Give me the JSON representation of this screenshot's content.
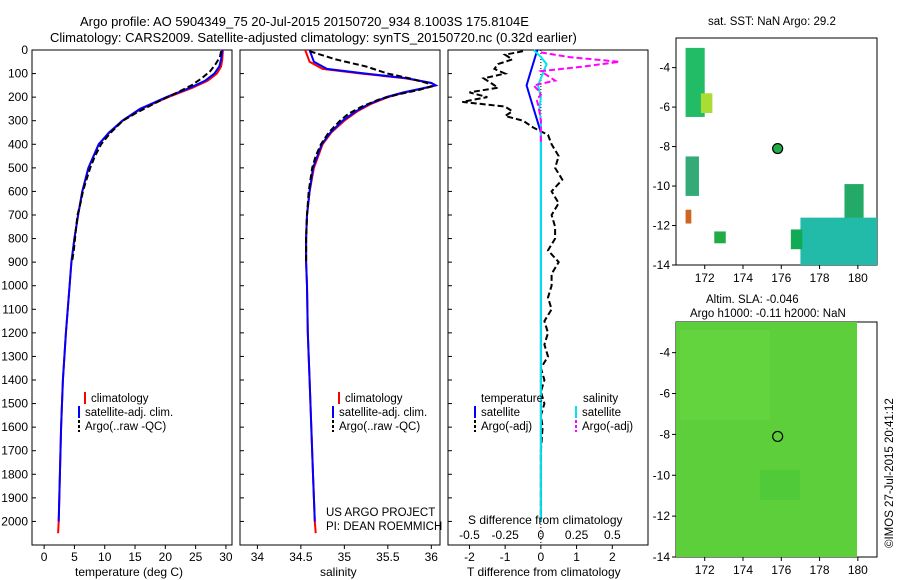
{
  "header": {
    "line1": "Argo profile: AO 5904349_75 20-Jul-2015 20150720_934 8.1003S 175.8104E",
    "line2": "Climatology: CARS2009. Satellite-adjusted climatology: synTS_20150720.nc (0.32d earlier)"
  },
  "colors": {
    "climatology": "#ff0000",
    "satellite": "#0000ff",
    "argo": "#000000",
    "sal_satellite": "#00e5ee",
    "sal_argo": "#ff00ff"
  },
  "chart_data": [
    {
      "type": "line",
      "id": "temperature",
      "xlabel": "temperature (deg C)",
      "ylabel": "",
      "xlim": [
        -2,
        31
      ],
      "ylim": [
        2100,
        0
      ],
      "xticks": [
        0,
        5,
        10,
        15,
        20,
        25,
        30
      ],
      "yticks": [
        0,
        100,
        200,
        300,
        400,
        500,
        600,
        700,
        800,
        900,
        1000,
        1100,
        1200,
        1300,
        1400,
        1500,
        1600,
        1700,
        1800,
        1900,
        2000
      ],
      "legend": [
        "climatology",
        "satellite-adj. clim.",
        "Argo(..raw -QC)"
      ],
      "series": [
        {
          "name": "climatology",
          "depth": [
            0,
            40,
            70,
            100,
            130,
            160,
            200,
            250,
            300,
            350,
            400,
            500,
            600,
            700,
            800,
            900,
            1000,
            1200,
            1400,
            1600,
            1800,
            2000,
            2050
          ],
          "values": [
            29.5,
            29.4,
            29.2,
            28.5,
            27.0,
            24.5,
            20.5,
            16.0,
            13.0,
            10.8,
            9.0,
            7.3,
            6.3,
            5.6,
            5.0,
            4.5,
            4.2,
            3.6,
            3.1,
            2.8,
            2.6,
            2.4,
            2.3
          ]
        },
        {
          "name": "satellite-adj. clim.",
          "depth": [
            0,
            40,
            70,
            100,
            130,
            160,
            200,
            250,
            300,
            350,
            400,
            500,
            600,
            700,
            800,
            900,
            1000,
            1200,
            1400,
            1600,
            1800,
            2000
          ],
          "values": [
            29.4,
            29.2,
            28.9,
            28.1,
            26.6,
            24.1,
            20.2,
            15.8,
            12.9,
            10.7,
            9.0,
            7.3,
            6.3,
            5.6,
            5.0,
            4.5,
            4.2,
            3.6,
            3.1,
            2.8,
            2.6,
            2.4
          ]
        },
        {
          "name": "Argo(..raw -QC)",
          "depth": [
            5,
            30,
            60,
            90,
            120,
            150,
            180,
            210,
            240,
            270,
            300,
            350,
            400,
            450,
            500,
            550,
            600,
            650,
            700,
            750,
            800,
            850,
            900
          ],
          "values": [
            29.2,
            29.0,
            28.3,
            27.4,
            26.0,
            24.3,
            22.0,
            19.5,
            17.2,
            15.0,
            13.0,
            11.0,
            9.4,
            8.4,
            7.6,
            7.0,
            6.4,
            6.0,
            5.5,
            5.3,
            5.1,
            4.9,
            4.6
          ]
        }
      ]
    },
    {
      "type": "line",
      "id": "salinity",
      "xlabel": "salinity",
      "xlim": [
        33.8,
        36.1
      ],
      "xticks": [
        34,
        34.5,
        35,
        35.5,
        36
      ],
      "legend": [
        "climatology",
        "satellite-adj. clim.",
        "Argo(..raw -QC)"
      ],
      "series": [
        {
          "name": "climatology",
          "depth": [
            0,
            50,
            80,
            100,
            120,
            140,
            150,
            160,
            180,
            200,
            230,
            260,
            300,
            350,
            400,
            500,
            600,
            700,
            800,
            900,
            1000,
            1200,
            1400,
            1600,
            1800,
            2000,
            2050
          ],
          "values": [
            34.55,
            34.6,
            34.75,
            35.2,
            35.7,
            36.0,
            36.05,
            35.95,
            35.7,
            35.5,
            35.3,
            35.15,
            35.0,
            34.85,
            34.75,
            34.65,
            34.6,
            34.57,
            34.56,
            34.56,
            34.57,
            34.58,
            34.6,
            34.62,
            34.64,
            34.66,
            34.67
          ]
        },
        {
          "name": "satellite-adj. clim.",
          "depth": [
            0,
            50,
            80,
            100,
            120,
            140,
            150,
            160,
            180,
            200,
            230,
            260,
            300,
            350,
            400,
            500,
            600,
            700,
            800,
            900,
            1000,
            1200,
            1400,
            1600,
            1800,
            2000
          ],
          "values": [
            34.6,
            34.65,
            34.8,
            35.25,
            35.72,
            36.0,
            36.05,
            35.93,
            35.68,
            35.48,
            35.28,
            35.13,
            34.98,
            34.84,
            34.74,
            34.64,
            34.6,
            34.57,
            34.56,
            34.56,
            34.57,
            34.58,
            34.6,
            34.62,
            34.64,
            34.66
          ]
        },
        {
          "name": "Argo(..raw -QC)",
          "depth": [
            5,
            40,
            70,
            100,
            120,
            140,
            155,
            170,
            190,
            210,
            240,
            270,
            300,
            350,
            400,
            450,
            500,
            600,
            700,
            800,
            900
          ],
          "values": [
            34.6,
            34.9,
            35.25,
            35.5,
            35.75,
            35.95,
            36.0,
            35.85,
            35.6,
            35.4,
            35.2,
            35.05,
            34.95,
            34.82,
            34.73,
            34.67,
            34.63,
            34.59,
            34.57,
            34.56,
            34.56
          ]
        }
      ]
    },
    {
      "type": "line",
      "id": "difference",
      "xlabel": "T difference from climatology",
      "xlabel2": "S difference from climatology",
      "xlim": [
        -2.6,
        3.0
      ],
      "xticks_T": [
        -2,
        -1,
        0,
        1,
        2
      ],
      "xticks_S": [
        -0.5,
        -0.25,
        0,
        0.25,
        0.5
      ],
      "xticks_S_labels": [
        "-0.5",
        "-0.25",
        "0",
        "0.25",
        "0.5"
      ],
      "legend_headers": [
        "temperature",
        "salinity"
      ],
      "legend": [
        "satellite",
        "Argo(-adj)",
        "satellite",
        "Argo(-adj)"
      ],
      "series": [
        {
          "name": "T satellite",
          "depth": [
            0,
            50,
            100,
            150,
            200,
            250,
            300,
            350,
            400,
            500,
            700,
            1000,
            1500,
            2000
          ],
          "values": [
            -0.1,
            -0.2,
            -0.3,
            -0.4,
            -0.3,
            -0.2,
            -0.1,
            0,
            0,
            0,
            0,
            0,
            0,
            0
          ]
        },
        {
          "name": "T Argo(-adj)",
          "depth": [
            5,
            20,
            40,
            60,
            80,
            100,
            120,
            140,
            160,
            180,
            200,
            220,
            240,
            260,
            280,
            300,
            330,
            360,
            400,
            450,
            500,
            550,
            600,
            650,
            700,
            750,
            800,
            850,
            900,
            950,
            1000,
            1050,
            1100,
            1150,
            1200,
            1250,
            1300,
            1350,
            1400,
            1450,
            1500,
            1550,
            1600,
            1700,
            1800,
            1900,
            2000
          ],
          "values": [
            -0.5,
            -1.0,
            -0.8,
            -1.2,
            -1.3,
            -1.0,
            -1.6,
            -1.4,
            -1.2,
            -2.0,
            -1.5,
            -2.2,
            -1.0,
            -0.8,
            -1.0,
            -0.5,
            -0.2,
            0.2,
            0.3,
            0.5,
            0.4,
            0.6,
            0.3,
            0.5,
            0.3,
            0.4,
            0.4,
            0.2,
            0.5,
            0.3,
            0.3,
            0.2,
            0.3,
            0.1,
            0.2,
            0.1,
            0.2,
            0.0,
            0.1,
            0.0,
            0.1,
            0.0,
            0.05,
            0.0,
            0.0,
            0.0,
            0.0
          ]
        },
        {
          "name": "S satellite",
          "depth": [
            0,
            30,
            60,
            90,
            120,
            150,
            200,
            250,
            300,
            400,
            600,
            1000,
            1500,
            2000
          ],
          "values": [
            -0.05,
            0.0,
            0.04,
            0.02,
            0.0,
            -0.02,
            0.0,
            -0.01,
            0.0,
            0.0,
            0.0,
            0.0,
            0.0,
            0.0
          ]
        },
        {
          "name": "S Argo(-adj)",
          "depth": [
            10,
            30,
            50,
            70,
            90,
            110,
            130,
            150,
            170,
            190,
            210,
            230,
            260,
            300,
            350,
            400
          ],
          "values": [
            0.0,
            0.2,
            0.55,
            0.3,
            0.0,
            0.05,
            0.1,
            -0.05,
            -0.02,
            0.0,
            -0.03,
            -0.02,
            -0.01,
            0.0,
            0.0,
            0.0
          ]
        }
      ]
    }
  ],
  "credits": {
    "line1": "US ARGO PROJECT",
    "line2": "PI: DEAN ROEMMICH"
  },
  "sst_map": {
    "title": "sat. SST: NaN Argo: 29.2",
    "xticks": [
      "172",
      "174",
      "176",
      "178",
      "180"
    ],
    "yticks": [
      "-4",
      "-6",
      "-8",
      "-10",
      "-12",
      "-14"
    ],
    "xlim": [
      170.5,
      181
    ],
    "ylim": [
      -14,
      -2.5
    ],
    "float_position": {
      "lon": 175.81,
      "lat": -8.1
    }
  },
  "sla_map": {
    "title1": "Altim. SLA: -0.046",
    "title2": "Argo h1000: -0.11 h2000: NaN",
    "xticks": [
      "172",
      "174",
      "176",
      "178",
      "180"
    ],
    "yticks": [
      "-4",
      "-6",
      "-8",
      "-10",
      "-12",
      "-14"
    ],
    "xlim": [
      170.5,
      181
    ],
    "ylim": [
      -14,
      -2.5
    ],
    "float_position": {
      "lon": 175.81,
      "lat": -8.1
    }
  },
  "footer": {
    "stamp": "©IMOS 27-Jul-2015 20:41:12"
  }
}
